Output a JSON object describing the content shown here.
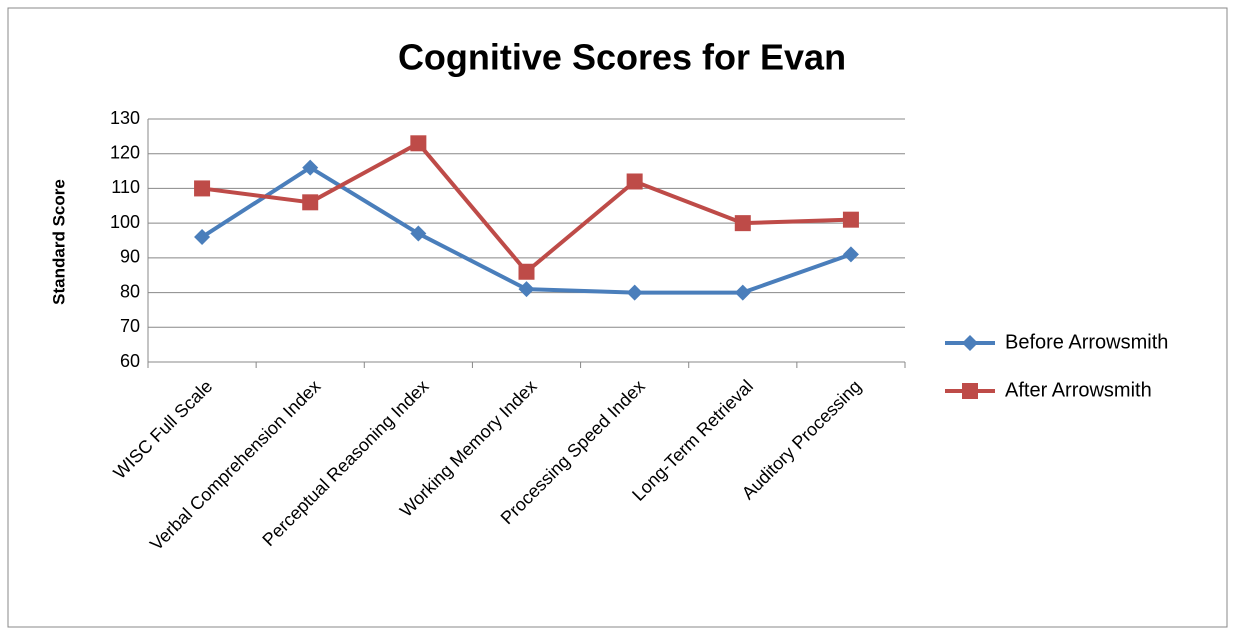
{
  "chart_data": {
    "type": "line",
    "title": "Cognitive Scores for Evan",
    "y_label": "Standard Score",
    "categories": [
      "WISC Full Scale",
      "Verbal Comprehension Index",
      "Perceptual Reasoning Index",
      "Working Memory Index",
      "Processing Speed Index",
      "Long-Term Retrieval",
      "Auditory Processing"
    ],
    "series": [
      {
        "name": "Before Arrowsmith",
        "color": "#4a7ebb",
        "marker": "diamond",
        "values": [
          96,
          116,
          97,
          81,
          80,
          80,
          91
        ]
      },
      {
        "name": "After Arrowsmith",
        "color": "#be4b48",
        "marker": "square",
        "values": [
          110,
          106,
          123,
          86,
          112,
          100,
          101
        ]
      }
    ],
    "ylim": [
      60,
      130
    ],
    "yticks": [
      60,
      70,
      80,
      90,
      100,
      110,
      120,
      130
    ],
    "grid": true,
    "legend": "right"
  }
}
